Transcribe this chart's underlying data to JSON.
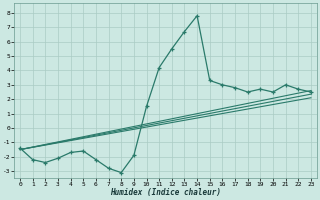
{
  "xlabel": "Humidex (Indice chaleur)",
  "background_color": "#cce8e2",
  "grid_color": "#aaccC4",
  "line_color": "#2a7a6a",
  "xlim": [
    -0.5,
    23.5
  ],
  "ylim": [
    -3.5,
    8.7
  ],
  "yticks": [
    -3,
    -2,
    -1,
    0,
    1,
    2,
    3,
    4,
    5,
    6,
    7,
    8
  ],
  "xticks": [
    0,
    1,
    2,
    3,
    4,
    5,
    6,
    7,
    8,
    9,
    10,
    11,
    12,
    13,
    14,
    15,
    16,
    17,
    18,
    19,
    20,
    21,
    22,
    23
  ],
  "main_x": [
    0,
    1,
    2,
    3,
    4,
    5,
    6,
    7,
    8,
    9,
    10,
    11,
    12,
    13,
    14,
    15,
    16,
    17,
    18,
    19,
    20,
    21,
    22,
    23
  ],
  "main_y": [
    -1.4,
    -2.2,
    -2.4,
    -2.1,
    -1.7,
    -1.6,
    -2.2,
    -2.8,
    -3.1,
    -1.9,
    1.5,
    4.2,
    5.5,
    6.7,
    7.8,
    3.3,
    3.0,
    2.8,
    2.5,
    2.7,
    2.5,
    3.0,
    2.7,
    2.5
  ],
  "trend_lines": [
    {
      "x": [
        0,
        23
      ],
      "y": [
        -1.5,
        2.1
      ]
    },
    {
      "x": [
        0,
        23
      ],
      "y": [
        -1.5,
        2.35
      ]
    },
    {
      "x": [
        0,
        23
      ],
      "y": [
        -1.5,
        2.6
      ]
    }
  ]
}
